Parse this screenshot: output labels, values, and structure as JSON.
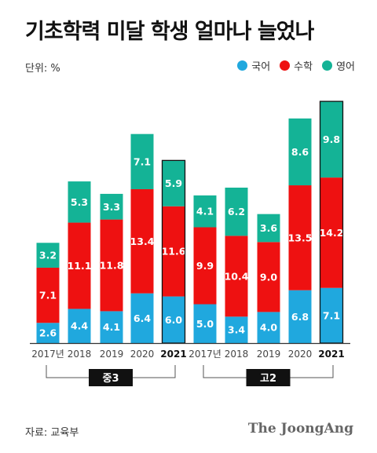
{
  "title": "기초학력 미달 학생 얼마나 늘었나",
  "unit_label": "단위: %",
  "source": "자료: 교육부",
  "brand": "The JoongAng",
  "colors": {
    "korean": "#20a8de",
    "math": "#ee1111",
    "english": "#14b396",
    "highlight_outline": "#111111"
  },
  "legend": [
    {
      "name": "국어",
      "color": "#20a8de"
    },
    {
      "name": "수학",
      "color": "#ee1111"
    },
    {
      "name": "영어",
      "color": "#14b396"
    }
  ],
  "chart_data": {
    "type": "bar",
    "stacked": true,
    "groups": [
      {
        "label": "중3",
        "categories": [
          "2017년",
          "2018",
          "2019",
          "2020",
          "2021"
        ]
      },
      {
        "label": "고2",
        "categories": [
          "2017년",
          "2018",
          "2019",
          "2020",
          "2021"
        ]
      }
    ],
    "categories": [
      "2017년",
      "2018",
      "2019",
      "2020",
      "2021",
      "2017년",
      "2018",
      "2019",
      "2020",
      "2021"
    ],
    "highlight_index": [
      4,
      9
    ],
    "series": [
      {
        "name": "국어",
        "color": "#20a8de",
        "values": [
          2.6,
          4.4,
          4.1,
          6.4,
          6.0,
          5.0,
          3.4,
          4.0,
          6.8,
          7.1
        ]
      },
      {
        "name": "수학",
        "color": "#ee1111",
        "values": [
          7.1,
          11.1,
          11.8,
          13.4,
          11.6,
          9.9,
          10.4,
          9.0,
          13.5,
          14.2
        ]
      },
      {
        "name": "영어",
        "color": "#14b396",
        "values": [
          3.2,
          5.3,
          3.3,
          7.1,
          5.9,
          4.1,
          6.2,
          3.6,
          8.6,
          9.8
        ]
      }
    ],
    "value_labels": [
      [
        "2.6",
        "4.4",
        "4.1",
        "6.4",
        "6.0",
        "5.0",
        "3.4",
        "4.0",
        "6.8",
        "7.1"
      ],
      [
        "7.1",
        "11.1",
        "11.8",
        "13.4",
        "11.6",
        "9.9",
        "10.4",
        "9.0",
        "13.5",
        "14.2"
      ],
      [
        "3.2",
        "5.3",
        "3.3",
        "7.1",
        "5.9",
        "4.1",
        "6.2",
        "3.6",
        "8.6",
        "9.8"
      ]
    ],
    "ylim": [
      0,
      32
    ]
  }
}
